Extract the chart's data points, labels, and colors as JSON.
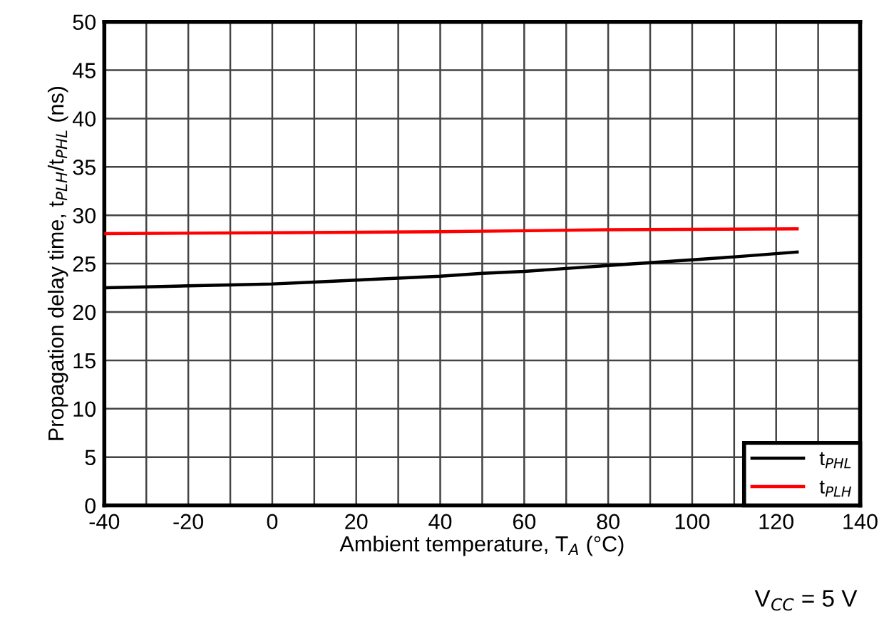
{
  "chart_data": {
    "type": "line",
    "xlabel": "Ambient temperature, T$_{A}$ (°C)",
    "ylabel": "Propagation delay time, t$_{PLH}$/t$_{PHL}$ (ns)",
    "series": [
      {
        "name": "t$_{PHL}$",
        "color": "#000000",
        "x": [
          -40,
          -30,
          -20,
          -10,
          0,
          10,
          20,
          30,
          40,
          50,
          60,
          70,
          80,
          90,
          100,
          110,
          125
        ],
        "values": [
          22.5,
          22.6,
          22.7,
          22.8,
          22.9,
          23.1,
          23.3,
          23.5,
          23.7,
          24.0,
          24.2,
          24.5,
          24.8,
          25.1,
          25.4,
          25.7,
          26.2
        ]
      },
      {
        "name": "t$_{PLH}$",
        "color": "#ff0000",
        "x": [
          -40,
          0,
          40,
          80,
          125
        ],
        "values": [
          28.1,
          28.2,
          28.3,
          28.5,
          28.6
        ]
      }
    ],
    "xlim": [
      -40,
      140
    ],
    "xticks": [
      -40,
      {
        "value": -30,
        "label": null
      },
      -20,
      {
        "value": -10,
        "label": null
      },
      0,
      {
        "value": 10,
        "label": null
      },
      20,
      {
        "value": 30,
        "label": null
      },
      40,
      {
        "value": 50,
        "label": null
      },
      60,
      {
        "value": 70,
        "label": null
      },
      80,
      {
        "value": 90,
        "label": null
      },
      100,
      {
        "value": 110,
        "label": null
      },
      120,
      {
        "value": 130,
        "label": null
      },
      140
    ],
    "ylim": [
      0,
      50
    ],
    "yticks": [
      0,
      5,
      10,
      15,
      20,
      25,
      30,
      35,
      40,
      45,
      50
    ],
    "grid": true,
    "legend": "bottom right",
    "marker": "none",
    "line_style": "solid",
    "annotations": [
      "V$_{CC}$ = 5 V"
    ]
  }
}
